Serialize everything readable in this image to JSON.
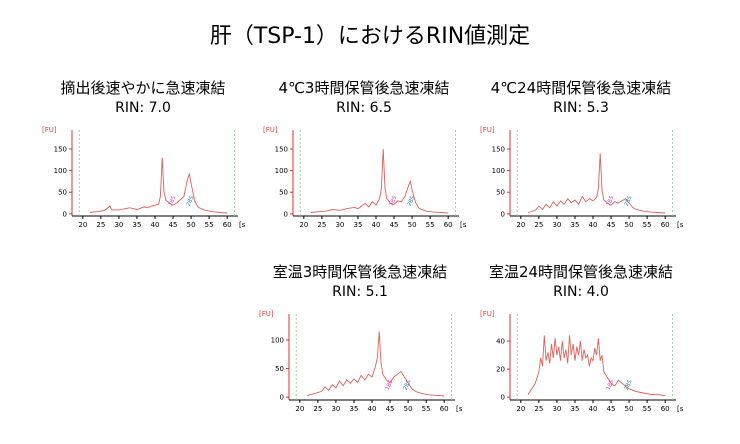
{
  "title": "肝（TSP-1）におけるRIN値測定",
  "colors": {
    "trace": "#e0605a",
    "axis_left": "#e03030",
    "axis_bottom": "#000000",
    "marker": "#90c890",
    "ladder_label_1": "#d040d0",
    "ladder_label_2": "#2080a0"
  },
  "chart_data": [
    {
      "type": "line",
      "condition": "摘出後速やかに急速凍結",
      "rin_text": "RIN: 7.0",
      "ylabel": "[FU]",
      "xunit": "[s]",
      "xlim": [
        17,
        63
      ],
      "ylim": [
        -5,
        180
      ],
      "xticks": [
        20,
        25,
        30,
        35,
        40,
        45,
        50,
        55,
        60
      ],
      "yticks": [
        0,
        50,
        100,
        150
      ],
      "markers": [
        19,
        62
      ],
      "ladder_marks": [
        {
          "text": "18S",
          "x": 44.5
        },
        {
          "text": "28S",
          "x": 49.5
        }
      ],
      "series": [
        {
          "x": [
            22,
            24,
            26,
            27.5,
            28,
            30,
            33,
            35,
            37,
            38,
            39,
            40,
            41,
            41.5,
            42,
            42.5,
            43,
            44,
            45,
            46,
            48,
            49,
            49.5,
            50,
            51,
            52,
            54,
            56,
            58,
            60
          ],
          "values": [
            3,
            5,
            8,
            18,
            9,
            9,
            14,
            10,
            16,
            14,
            18,
            20,
            22,
            40,
            130,
            50,
            32,
            25,
            20,
            25,
            40,
            80,
            92,
            70,
            30,
            15,
            8,
            5,
            3,
            2
          ]
        }
      ]
    },
    {
      "type": "line",
      "condition": "4℃3時間保管後急速凍結",
      "rin_text": "RIN: 6.5",
      "ylabel": "[FU]",
      "xunit": "[s]",
      "xlim": [
        17,
        63
      ],
      "ylim": [
        -5,
        180
      ],
      "xticks": [
        20,
        25,
        30,
        35,
        40,
        45,
        50,
        55,
        60
      ],
      "yticks": [
        0,
        50,
        100,
        150
      ],
      "markers": [
        19,
        62
      ],
      "ladder_marks": [
        {
          "text": "18S",
          "x": 44.5
        },
        {
          "text": "28S",
          "x": 49.5
        }
      ],
      "series": [
        {
          "x": [
            22,
            24,
            26,
            28,
            30,
            32,
            34,
            35,
            36,
            37,
            38,
            39,
            40,
            41,
            41.5,
            42,
            42.5,
            43,
            44,
            45,
            46,
            47,
            48,
            49,
            49.5,
            50,
            51,
            52,
            54,
            56,
            58,
            60
          ],
          "values": [
            3,
            5,
            6,
            10,
            8,
            12,
            15,
            12,
            18,
            24,
            16,
            28,
            20,
            35,
            60,
            150,
            60,
            35,
            25,
            22,
            30,
            28,
            40,
            65,
            75,
            55,
            25,
            12,
            6,
            4,
            3,
            2
          ]
        }
      ]
    },
    {
      "type": "line",
      "condition": "4℃24時間保管後急速凍結",
      "rin_text": "RIN: 5.3",
      "ylabel": "[FU]",
      "xunit": "[s]",
      "xlim": [
        17,
        63
      ],
      "ylim": [
        -5,
        180
      ],
      "xticks": [
        20,
        25,
        30,
        35,
        40,
        45,
        50,
        55,
        60
      ],
      "yticks": [
        0,
        50,
        100,
        150
      ],
      "markers": [
        19,
        62
      ],
      "ladder_marks": [
        {
          "text": "18S",
          "x": 44.5
        },
        {
          "text": "28S",
          "x": 49.5
        }
      ],
      "series": [
        {
          "x": [
            22,
            24,
            25,
            26,
            27,
            28,
            29,
            30,
            31,
            32,
            33,
            34,
            35,
            36,
            37,
            38,
            39,
            40,
            41,
            41.5,
            42,
            42.5,
            43,
            44,
            45,
            46,
            47,
            48,
            49,
            50,
            51,
            52,
            54,
            56,
            58,
            60
          ],
          "values": [
            3,
            8,
            18,
            10,
            22,
            14,
            28,
            18,
            30,
            22,
            35,
            26,
            32,
            22,
            40,
            28,
            35,
            30,
            38,
            60,
            140,
            55,
            32,
            25,
            20,
            28,
            25,
            30,
            35,
            25,
            15,
            10,
            6,
            4,
            3,
            2
          ]
        }
      ]
    },
    {
      "type": "line",
      "condition": "室温3時間保管後急速凍結",
      "rin_text": "RIN: 5.1",
      "ylabel": "[FU]",
      "xunit": "[s]",
      "xlim": [
        17,
        63
      ],
      "ylim": [
        -5,
        135
      ],
      "xticks": [
        20,
        25,
        30,
        35,
        40,
        45,
        50,
        55,
        60
      ],
      "yticks": [
        0,
        50,
        100
      ],
      "markers": [
        19,
        62
      ],
      "ladder_marks": [
        {
          "text": "18S",
          "x": 44.5
        },
        {
          "text": "28S",
          "x": 49.5
        }
      ],
      "series": [
        {
          "x": [
            22,
            24,
            26,
            27,
            28,
            29,
            30,
            31,
            32,
            33,
            34,
            35,
            36,
            37,
            38,
            39,
            40,
            41,
            41.5,
            42,
            42.5,
            43,
            44,
            45,
            46,
            47,
            48,
            49,
            50,
            51,
            52,
            54,
            56,
            58,
            60
          ],
          "values": [
            3,
            6,
            10,
            18,
            12,
            22,
            16,
            28,
            20,
            30,
            24,
            32,
            26,
            38,
            30,
            40,
            35,
            55,
            70,
            115,
            60,
            40,
            30,
            25,
            35,
            40,
            45,
            35,
            25,
            15,
            10,
            6,
            4,
            3,
            2
          ]
        }
      ]
    },
    {
      "type": "line",
      "condition": "室温24時間保管後急速凍結",
      "rin_text": "RIN: 4.0",
      "ylabel": "[FU]",
      "xunit": "[s]",
      "xlim": [
        17,
        63
      ],
      "ylim": [
        -2,
        55
      ],
      "xticks": [
        20,
        25,
        30,
        35,
        40,
        45,
        50,
        55,
        60
      ],
      "yticks": [
        0,
        20,
        40
      ],
      "markers": [
        19,
        62
      ],
      "ladder_marks": [
        {
          "text": "18S",
          "x": 44.5
        },
        {
          "text": "28S",
          "x": 49.5
        }
      ],
      "series": [
        {
          "x": [
            22,
            23,
            24,
            25,
            25.5,
            26,
            26.5,
            27,
            27.5,
            28,
            28.5,
            29,
            29.5,
            30,
            30.5,
            31,
            31.5,
            32,
            32.5,
            33,
            33.5,
            34,
            34.5,
            35,
            35.5,
            36,
            36.5,
            37,
            37.5,
            38,
            38.5,
            39,
            39.5,
            40,
            40.5,
            41,
            41.5,
            42,
            42.5,
            43,
            44,
            45,
            46,
            47,
            48,
            49,
            50,
            51,
            52,
            54,
            56,
            58,
            60
          ],
          "values": [
            2,
            6,
            10,
            18,
            28,
            22,
            44,
            26,
            32,
            24,
            38,
            28,
            42,
            30,
            36,
            26,
            40,
            28,
            34,
            24,
            44,
            30,
            38,
            26,
            36,
            30,
            40,
            26,
            34,
            28,
            30,
            22,
            28,
            26,
            35,
            30,
            42,
            26,
            30,
            18,
            14,
            10,
            8,
            12,
            10,
            8,
            6,
            5,
            4,
            3,
            2,
            2,
            1
          ]
        }
      ]
    }
  ]
}
